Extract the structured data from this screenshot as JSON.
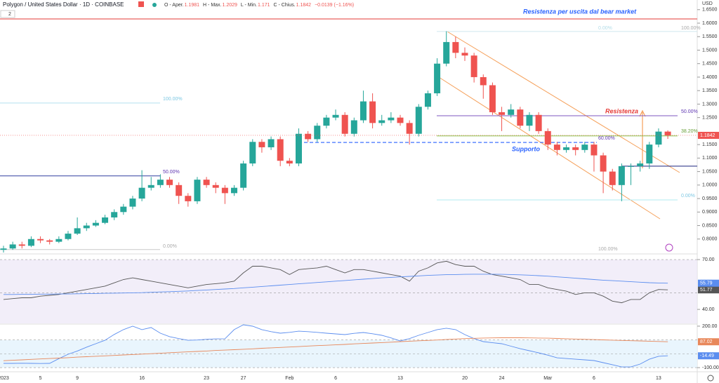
{
  "chart_data": [
    {
      "type": "candlestick",
      "title": "Polygon / United States Dollar · 1D · COINBASE",
      "currency": "USD",
      "badge": "2",
      "ohlc_labels": [
        "O - Aper.",
        "H - Max.",
        "L - Min.",
        "C - Chius."
      ],
      "change": "−0.0139 (−1.16%)",
      "categories": [
        "2023",
        null,
        null,
        null,
        "5",
        null,
        null,
        null,
        "9",
        null,
        null,
        null,
        null,
        null,
        null,
        "16",
        null,
        null,
        null,
        null,
        null,
        null,
        "23",
        null,
        null,
        null,
        "27",
        null,
        null,
        null,
        null,
        "Feb",
        null,
        null,
        null,
        null,
        "6",
        null,
        null,
        null,
        null,
        null,
        null,
        "13",
        null,
        null,
        null,
        null,
        null,
        null,
        "20",
        null,
        null,
        null,
        "24",
        null,
        null,
        null,
        null,
        "Mar",
        null,
        null,
        null,
        null,
        "6",
        null,
        null,
        null,
        null,
        null,
        null,
        "13",
        null
      ],
      "open": [
        0.76,
        0.765,
        0.78,
        0.775,
        0.8,
        0.795,
        0.79,
        0.8,
        0.82,
        0.84,
        0.85,
        0.86,
        0.88,
        0.9,
        0.92,
        0.95,
        0.99,
        1.0,
        1.02,
        1.0,
        0.96,
        0.94,
        1.02,
        1.0,
        0.99,
        0.97,
        0.99,
        1.08,
        1.16,
        1.14,
        1.17,
        1.09,
        1.08,
        1.19,
        1.17,
        1.22,
        1.25,
        1.26,
        1.19,
        1.24,
        1.31,
        1.23,
        1.24,
        1.25,
        1.23,
        1.19,
        1.29,
        1.34,
        1.45,
        1.53,
        1.49,
        1.48,
        1.4,
        1.37,
        1.27,
        1.26,
        1.28,
        1.22,
        1.26,
        1.2,
        1.15,
        1.13,
        1.14,
        1.13,
        1.15,
        1.11,
        1.05,
        1.0,
        1.07,
        1.07,
        1.08,
        1.15,
        1.1981
      ],
      "high": [
        0.775,
        0.79,
        0.79,
        0.81,
        0.81,
        0.8,
        0.81,
        0.83,
        0.88,
        0.86,
        0.87,
        0.89,
        0.91,
        0.93,
        0.96,
        1.055,
        1.03,
        1.04,
        1.03,
        1.01,
        0.97,
        1.03,
        1.03,
        1.01,
        1.0,
        1.0,
        1.09,
        1.17,
        1.17,
        1.18,
        1.18,
        1.1,
        1.21,
        1.2,
        1.23,
        1.26,
        1.28,
        1.27,
        1.25,
        1.35,
        1.34,
        1.26,
        1.27,
        1.26,
        1.24,
        1.3,
        1.35,
        1.47,
        1.57,
        1.55,
        1.51,
        1.49,
        1.41,
        1.38,
        1.29,
        1.3,
        1.29,
        1.27,
        1.27,
        1.21,
        1.16,
        1.15,
        1.15,
        1.16,
        1.16,
        1.12,
        1.06,
        1.08,
        1.08,
        1.09,
        1.16,
        1.21,
        1.2029
      ],
      "low": [
        0.75,
        0.76,
        0.765,
        0.77,
        0.785,
        0.78,
        0.785,
        0.795,
        0.815,
        0.83,
        0.845,
        0.855,
        0.87,
        0.89,
        0.91,
        0.94,
        0.98,
        0.99,
        0.99,
        0.93,
        0.92,
        0.93,
        0.99,
        0.97,
        0.93,
        0.96,
        0.98,
        1.07,
        1.12,
        1.13,
        1.07,
        1.07,
        1.07,
        1.16,
        1.16,
        1.21,
        1.24,
        1.18,
        1.18,
        1.23,
        1.21,
        1.22,
        1.23,
        1.22,
        1.15,
        1.18,
        1.28,
        1.33,
        1.44,
        1.47,
        1.46,
        1.38,
        1.32,
        1.26,
        1.2,
        1.25,
        1.21,
        1.2,
        1.19,
        1.13,
        1.11,
        1.12,
        1.11,
        1.12,
        1.05,
        0.97,
        0.98,
        0.94,
        1.0,
        1.05,
        1.06,
        1.14,
        1.171
      ],
      "close": [
        0.765,
        0.78,
        0.775,
        0.8,
        0.795,
        0.79,
        0.8,
        0.82,
        0.84,
        0.85,
        0.86,
        0.88,
        0.9,
        0.92,
        0.95,
        0.99,
        1.0,
        1.02,
        1.0,
        0.96,
        0.94,
        1.02,
        1.0,
        0.99,
        0.97,
        0.99,
        1.08,
        1.16,
        1.14,
        1.17,
        1.09,
        1.08,
        1.19,
        1.17,
        1.22,
        1.25,
        1.26,
        1.19,
        1.24,
        1.31,
        1.23,
        1.24,
        1.25,
        1.23,
        1.19,
        1.29,
        1.34,
        1.45,
        1.53,
        1.49,
        1.48,
        1.4,
        1.37,
        1.27,
        1.26,
        1.28,
        1.22,
        1.26,
        1.2,
        1.15,
        1.13,
        1.14,
        1.13,
        1.15,
        1.11,
        1.05,
        1.0,
        1.07,
        1.07,
        1.08,
        1.15,
        1.1981,
        1.1842
      ],
      "up_color": "#26a69a",
      "down_color": "#ef5350",
      "ylim": [
        0.75,
        1.6494
      ],
      "yticks": [
        {
          "value": 0.8,
          "label": "0.8000"
        },
        {
          "value": 0.85,
          "label": "0.8500"
        },
        {
          "value": 0.9,
          "label": "0.9000"
        },
        {
          "value": 0.95,
          "label": "0.9500"
        },
        {
          "value": 1.0,
          "label": "1.0000"
        },
        {
          "value": 1.05,
          "label": "1.0500"
        },
        {
          "value": 1.1,
          "label": "1.1000"
        },
        {
          "value": 1.15,
          "label": "1.1500"
        },
        {
          "value": 1.25,
          "label": "1.2500"
        },
        {
          "value": 1.3,
          "label": "1.3000"
        },
        {
          "value": 1.35,
          "label": "1.3500"
        },
        {
          "value": 1.4,
          "label": "1.4000"
        },
        {
          "value": 1.45,
          "label": "1.4500"
        },
        {
          "value": 1.5,
          "label": "1.5000"
        },
        {
          "value": 1.55,
          "label": "1.5500"
        },
        {
          "value": 1.6,
          "label": "1.6000"
        },
        {
          "value": 1.65,
          "label": "1.6500"
        }
      ],
      "annotations": [
        "Resistenza per uscita dal bear market",
        "Resistenza",
        "Supporto",
        "100.00%",
        "50.00%",
        "0.00%",
        "0.00%",
        "100.00%",
        "50.00%",
        "38.20%",
        "60.00%",
        "0.00%",
        "100.00%"
      ],
      "levels": [
        {
          "value": 1.6156,
          "color": "#e53935"
        },
        {
          "value": 1.304,
          "color": "#b3e0ef"
        },
        {
          "value": 1.034,
          "color": "#303f9f"
        },
        {
          "value": 0.761,
          "color": "#c8c8c8"
        },
        {
          "value": 1.569,
          "color": "#cfe8ef"
        },
        {
          "value": 1.257,
          "color": "#7e57c2"
        },
        {
          "value": 1.182,
          "color": "#8bc34a"
        },
        {
          "value": 1.158,
          "color": "#2962ff"
        },
        {
          "value": 0.945,
          "color": "#b2ebf2"
        },
        {
          "value": 1.07,
          "color": "#1a237e"
        }
      ]
    },
    {
      "type": "line",
      "ylim": [
        31.6,
        73.4
      ],
      "yticks": [
        {
          "value": 70,
          "label": "70.00"
        },
        {
          "value": 40,
          "label": "40.00"
        }
      ],
      "series": [
        {
          "color": "#555555",
          "values": [
            46,
            46.5,
            47,
            47,
            48,
            48.5,
            49,
            50,
            51,
            52,
            53,
            54,
            56,
            58,
            59,
            58,
            57,
            56,
            55,
            54,
            53,
            54,
            55,
            55.5,
            56,
            57,
            62,
            66,
            66,
            65,
            64,
            61,
            64,
            64.5,
            65,
            66,
            64,
            62,
            64,
            64,
            63,
            62,
            61,
            60,
            57,
            63,
            65,
            68,
            69,
            67,
            66,
            66,
            63,
            61,
            60,
            59,
            58,
            55,
            55,
            53,
            52,
            51,
            49,
            50,
            50,
            48,
            45,
            44,
            46,
            46,
            50,
            52,
            51.77
          ],
          "value_labels": {
            "72": "51.77"
          }
        },
        {
          "color": "#5b8def",
          "values": [
            49,
            49,
            49.1,
            49.1,
            49.2,
            49.2,
            49.3,
            49.3,
            49.4,
            49.5,
            49.6,
            49.7,
            49.8,
            49.9,
            50,
            50.1,
            50.3,
            50.5,
            50.7,
            50.9,
            51.1,
            51.4,
            51.7,
            52,
            52.3,
            52.6,
            53,
            53.4,
            53.8,
            54.2,
            54.6,
            55,
            55.4,
            55.8,
            56.2,
            56.6,
            57,
            57.4,
            57.8,
            58.2,
            58.6,
            59,
            59.3,
            59.6,
            59.9,
            60.2,
            60.5,
            60.7,
            60.9,
            61,
            61.1,
            61.2,
            61.2,
            61.2,
            61.1,
            61,
            60.8,
            60.6,
            60.3,
            60,
            59.6,
            59.2,
            58.8,
            58.4,
            58,
            57.6,
            57.3,
            57,
            56.7,
            56.4,
            56.1,
            55.9,
            55.79
          ],
          "value_labels": {
            "72": "55.79"
          }
        }
      ]
    },
    {
      "type": "line",
      "ylim": [
        -130,
        215
      ],
      "yticks": [
        {
          "value": 200,
          "label": "200.00"
        },
        {
          "value": -100,
          "label": "-100.00"
        }
      ],
      "series": [
        {
          "color": "#5b8def",
          "values": [
            -69,
            -69,
            -68,
            -69,
            -70,
            -69,
            -35,
            -3,
            20,
            48,
            73,
            98,
            140,
            175,
            200,
            175,
            190,
            149,
            124,
            110,
            98,
            100,
            105,
            108,
            109,
            175,
            210,
            200,
            175,
            160,
            149,
            155,
            164,
            160,
            155,
            149,
            144,
            139,
            148,
            154,
            145,
            134,
            115,
            93,
            110,
            134,
            154,
            175,
            185,
            175,
            139,
            110,
            88,
            80,
            73,
            55,
            37,
            22,
            7,
            -10,
            -29,
            -34,
            -39,
            -44,
            -49,
            -64,
            -79,
            -95,
            -95,
            -74,
            -39,
            -18,
            -14.49
          ],
          "value_labels": {
            "72": "-14.49"
          }
        },
        {
          "color": "#e8875a",
          "values": [
            -50,
            -47,
            -44,
            -40,
            -37,
            -34,
            -31,
            -28,
            -24,
            -21,
            -18,
            -15,
            -12,
            -8,
            -5,
            -2,
            1,
            4,
            8,
            11,
            14,
            17,
            20,
            24,
            27,
            30,
            33,
            36,
            40,
            43,
            46,
            49,
            52,
            56,
            59,
            62,
            65,
            68,
            72,
            75,
            78,
            81,
            84,
            88,
            91,
            94,
            97,
            100,
            104,
            107,
            110,
            112,
            114,
            115,
            116,
            116,
            116,
            115,
            114,
            113,
            111,
            109,
            107,
            105,
            103,
            101,
            99,
            97,
            95,
            93,
            91,
            89,
            87.02
          ],
          "value_labels": {
            "72": "87.02"
          }
        }
      ]
    }
  ]
}
